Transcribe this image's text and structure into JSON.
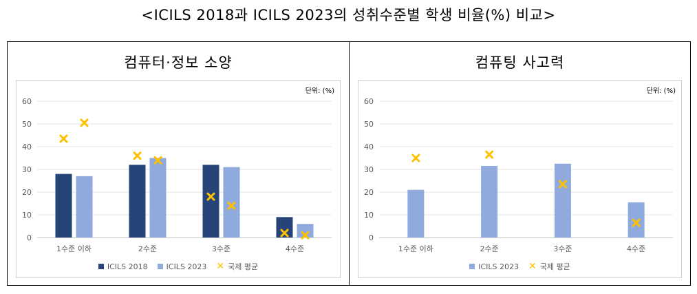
{
  "title": "<ICILS 2018과 ICILS 2023의 성취수준별 학생 비율(%) 비교>",
  "colors": {
    "icils2018": "#264478",
    "icils2023": "#8faadc",
    "intl_avg": "#ffc000"
  },
  "chart_data": [
    {
      "type": "bar",
      "title": "컴퓨터·정보 소양",
      "unit": "단위: (%)",
      "categories": [
        "1수준 이하",
        "2수준",
        "3수준",
        "4수준"
      ],
      "ylim": [
        0,
        60
      ],
      "yticks": [
        0,
        10,
        20,
        30,
        40,
        50,
        60
      ],
      "grid": true,
      "legend_position": "bottom",
      "series": [
        {
          "name": "ICILS 2018",
          "kind": "bar",
          "color": "#264478",
          "values": [
            28,
            32,
            32,
            9
          ]
        },
        {
          "name": "ICILS 2023",
          "kind": "bar",
          "color": "#8faadc",
          "values": [
            27,
            35,
            31,
            6
          ]
        }
      ],
      "markers": [
        {
          "name": "국제 평균",
          "color": "#ffc000",
          "points": [
            {
              "category": 0,
              "group": 0,
              "value": 43.5
            },
            {
              "category": 0,
              "group": 1,
              "value": 50.5
            },
            {
              "category": 1,
              "group": 0,
              "value": 36
            },
            {
              "category": 1,
              "group": 1,
              "value": 34
            },
            {
              "category": 2,
              "group": 0,
              "value": 18
            },
            {
              "category": 2,
              "group": 1,
              "value": 14
            },
            {
              "category": 3,
              "group": 0,
              "value": 2
            },
            {
              "category": 3,
              "group": 1,
              "value": 1
            }
          ]
        }
      ]
    },
    {
      "type": "bar",
      "title": "컴퓨팅 사고력",
      "unit": "단위: (%)",
      "categories": [
        "1수준 이하",
        "2수준",
        "3수준",
        "4수준"
      ],
      "ylim": [
        0,
        60
      ],
      "yticks": [
        0,
        10,
        20,
        30,
        40,
        50,
        60
      ],
      "grid": true,
      "legend_position": "bottom",
      "series": [
        {
          "name": "ICILS 2023",
          "kind": "bar",
          "color": "#8faadc",
          "values": [
            21,
            31.5,
            32.5,
            15.5
          ]
        }
      ],
      "markers": [
        {
          "name": "국제 평균",
          "color": "#ffc000",
          "points": [
            {
              "category": 0,
              "group": 0,
              "value": 35
            },
            {
              "category": 1,
              "group": 0,
              "value": 36.5
            },
            {
              "category": 2,
              "group": 0,
              "value": 23.5
            },
            {
              "category": 3,
              "group": 0,
              "value": 6.5
            }
          ]
        }
      ]
    }
  ]
}
